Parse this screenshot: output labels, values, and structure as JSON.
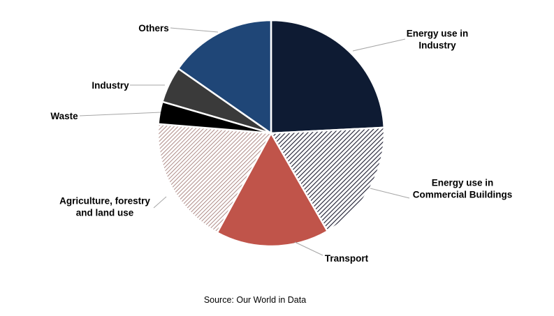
{
  "chart_data": {
    "type": "pie",
    "categories": [
      "Energy use in Industry",
      "Energy use in Commercial Buildings",
      "Transport",
      "Agriculture, forestry and land use",
      "Waste",
      "Industry",
      "Others"
    ],
    "values": [
      24.2,
      17.5,
      16.2,
      18.4,
      3.2,
      5.2,
      15.3
    ],
    "labels": [
      [
        "Energy use in",
        "Industry"
      ],
      [
        "Energy use in",
        "Commercial Buildings"
      ],
      [
        "Transport"
      ],
      [
        "Agriculture, forestry",
        "and land use"
      ],
      [
        "Waste"
      ],
      [
        "Industry"
      ],
      [
        "Others"
      ]
    ],
    "styles": [
      {
        "fill": "#0e1b33",
        "pattern": "none"
      },
      {
        "fill": "#ffffff",
        "pattern": "dense-diagonal",
        "stroke": "#1a1a2e"
      },
      {
        "fill": "#c0544a",
        "pattern": "none"
      },
      {
        "fill": "#ffffff",
        "pattern": "diagonal",
        "stroke": "#9a6f6a"
      },
      {
        "fill": "#000000",
        "pattern": "none"
      },
      {
        "fill": "#3a3a3a",
        "pattern": "none"
      },
      {
        "fill": "#1f4677",
        "pattern": "none"
      }
    ],
    "start_angle_deg": 0,
    "direction": "clockwise",
    "source": "Source: Our World in Data"
  }
}
